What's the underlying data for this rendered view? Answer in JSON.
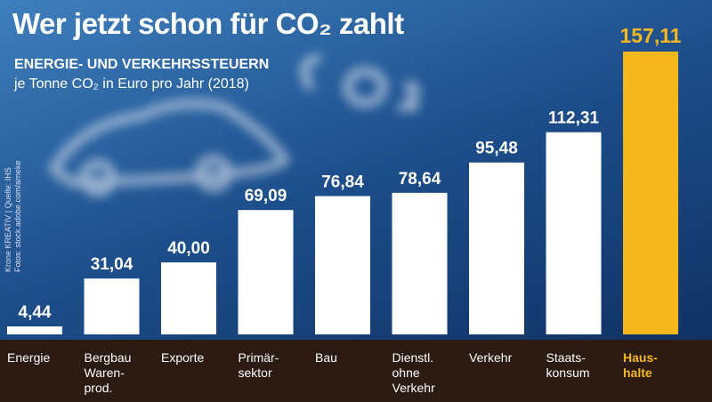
{
  "chart_data": {
    "type": "bar",
    "title": "Wer jetzt schon für CO₂ zahlt",
    "subtitle": "ENERGIE- UND VERKEHRSSTEUERN",
    "unit_note": "je Tonne CO₂ in Euro pro Jahr (2018)",
    "source": [
      "Krone KREATIV | Quelle: IHS",
      "Fotos: stock.adobe.com/arneke"
    ],
    "categories": [
      "Energie",
      "Bergbau\nWaren-\nprod.",
      "Exporte",
      "Primär-\nsektor",
      "Bau",
      "Dienstl.\nohne\nVerkehr",
      "Verkehr",
      "Staats-\nkonsum",
      "Haus-\nhalte"
    ],
    "values": [
      4.44,
      31.04,
      40.0,
      69.09,
      76.84,
      78.64,
      95.48,
      112.31,
      157.11
    ],
    "value_labels": [
      "4,44",
      "31,04",
      "40,00",
      "69,09",
      "76,84",
      "78,64",
      "95,48",
      "112,31",
      "157,11"
    ],
    "color": "#ffffff",
    "highlight_color": "#f6b81c",
    "highlight_index": 8
  }
}
